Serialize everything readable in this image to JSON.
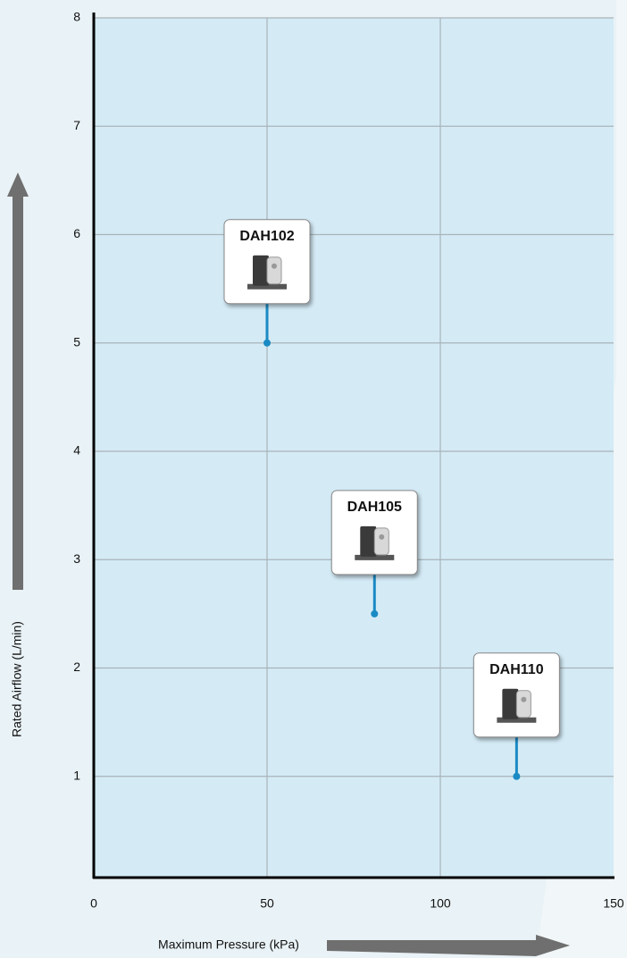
{
  "chart_data": {
    "type": "scatter",
    "x_label": "Maximum Pressure (kPa)",
    "y_label": "Rated Airflow (L/min)",
    "x": [
      50,
      81,
      122
    ],
    "values": [
      5,
      2.5,
      1
    ],
    "point_labels": [
      "DAH102",
      "DAH105",
      "DAH110"
    ],
    "color": "#1a8ac4",
    "xlim": [
      0,
      150
    ],
    "xticks": [
      0,
      50,
      100,
      150
    ],
    "ylim": [
      0,
      8
    ],
    "yticks": [
      1,
      2,
      3,
      4,
      5,
      6,
      7,
      8
    ],
    "grid": true
  }
}
